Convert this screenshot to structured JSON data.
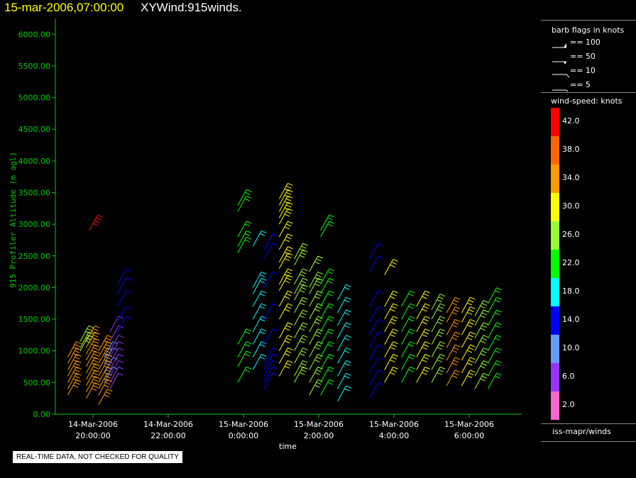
{
  "header": {
    "date_title": "15-mar-2006,07:00:00",
    "plot_title": "XYWind:915winds."
  },
  "chart_data": {
    "type": "scatter",
    "plot_kind": "wind-barb time-height profile",
    "ylabel": "915 Profiler Altitude (m agl)",
    "xlabel": "time",
    "ylim": [
      0,
      6250
    ],
    "yticks": [
      "0.00",
      "500.00",
      "1000.00",
      "1500.00",
      "2000.00",
      "2500.00",
      "3000.00",
      "3500.00",
      "4000.00",
      "4500.00",
      "5000.00",
      "5500.00",
      "6000.00"
    ],
    "xlim_hours": [
      19.1,
      26.5
    ],
    "xticks": [
      {
        "hour": 20,
        "date": "14-Mar-2006",
        "time": "20:00:00"
      },
      {
        "hour": 22,
        "date": "14-Mar-2006",
        "time": "22:00:00"
      },
      {
        "hour": 24,
        "date": "15-Mar-2006",
        "time": "0:00:00"
      },
      {
        "hour": 26,
        "date": "15-Mar-2006",
        "time": "2:00:00"
      },
      {
        "hour": 28,
        "date": "15-Mar-2006",
        "time": "4:00:00"
      },
      {
        "hour": 30,
        "date": "15-Mar-2006",
        "time": "6:00:00"
      }
    ],
    "profiles": [
      {
        "hour": 19.33,
        "heights": [
          300,
          400,
          500,
          600,
          700,
          800,
          900
        ],
        "speed": 33
      },
      {
        "hour": 19.66,
        "heights": [
          1000,
          1050,
          1150
        ],
        "speed": 26
      },
      {
        "hour": 19.82,
        "heights": [
          250,
          350,
          450,
          550,
          650,
          750,
          850,
          950,
          1050,
          1150
        ],
        "speed": 34
      },
      {
        "hour": 19.9,
        "heights": [
          2900
        ],
        "speed": 43
      },
      {
        "hour": 20.15,
        "heights": [
          150,
          300,
          400,
          500,
          600,
          700,
          800,
          900,
          1000
        ],
        "speed": 33
      },
      {
        "hour": 20.3,
        "heights": [
          500,
          650,
          800,
          900
        ],
        "speed": 10
      },
      {
        "hour": 20.45,
        "heights": [
          400,
          500,
          600,
          700,
          800,
          900,
          1000,
          1150,
          1300
        ],
        "speed": 8
      },
      {
        "hour": 20.65,
        "heights": [
          1300,
          1450,
          1700,
          1900,
          2050
        ],
        "speed": 14
      },
      {
        "hour": 23.85,
        "heights": [
          500,
          750,
          900,
          1100,
          2550,
          2650,
          2800,
          3200,
          3300
        ],
        "speed": 22
      },
      {
        "hour": 24.25,
        "heights": [
          700,
          900,
          1100,
          1300,
          1500,
          1700,
          1900,
          2000,
          2650
        ],
        "speed": 20
      },
      {
        "hour": 24.55,
        "heights": [
          400,
          500,
          600,
          700,
          800,
          1100,
          1500,
          2000,
          2450,
          2600
        ],
        "speed": 14
      },
      {
        "hour": 24.95,
        "heights": [
          600,
          800,
          1000,
          1200,
          1500,
          1700,
          1950,
          2050,
          2300,
          2400,
          2600,
          2800,
          3000,
          3100,
          3200,
          3300,
          3400
        ],
        "speed": 30
      },
      {
        "hour": 25.35,
        "heights": [
          500,
          600,
          800,
          1000,
          1200,
          1400,
          1600,
          1800,
          1900,
          2050,
          2350,
          2450
        ],
        "speed": 26
      },
      {
        "hour": 25.75,
        "heights": [
          300,
          500,
          700,
          900,
          1100,
          1300,
          1500,
          1700,
          1900,
          2000,
          2250
        ],
        "speed": 26
      },
      {
        "hour": 26.05,
        "heights": [
          300,
          500,
          700,
          900,
          1100,
          1300,
          1500,
          1700,
          1900,
          2050,
          2800,
          2900
        ],
        "speed": 22
      },
      {
        "hour": 26.5,
        "heights": [
          200,
          400,
          600,
          800,
          1000,
          1200,
          1400,
          1600,
          1800
        ],
        "speed": 18
      },
      {
        "hour": 27.35,
        "heights": [
          250,
          450,
          650,
          850,
          1050,
          1250,
          1450,
          1700,
          2250,
          2450
        ],
        "speed": 14
      },
      {
        "hour": 27.75,
        "heights": [
          500,
          700,
          900,
          1100,
          1300,
          1500,
          1700,
          2200
        ],
        "speed": 30
      },
      {
        "hour": 28.2,
        "heights": [
          500,
          700,
          900,
          1100,
          1300,
          1500,
          1700
        ],
        "speed": 24
      },
      {
        "hour": 28.6,
        "heights": [
          500,
          700,
          900,
          1100,
          1300,
          1500,
          1700
        ],
        "speed": 30
      },
      {
        "hour": 29.0,
        "heights": [
          500,
          700,
          900,
          1100,
          1300,
          1500,
          1650
        ],
        "speed": 28
      },
      {
        "hour": 29.4,
        "heights": [
          450,
          650,
          850,
          1050,
          1250,
          1450,
          1600
        ],
        "speed": 34
      },
      {
        "hour": 29.8,
        "heights": [
          450,
          650,
          850,
          1050,
          1250,
          1450,
          1600
        ],
        "speed": 30
      },
      {
        "hour": 30.15,
        "heights": [
          400,
          600,
          800,
          1000,
          1200,
          1400,
          1550
        ],
        "speed": 26
      },
      {
        "hour": 30.5,
        "heights": [
          400,
          600,
          800,
          1000,
          1200,
          1400,
          1600,
          1750
        ],
        "speed": 24
      }
    ]
  },
  "legend": {
    "barb_title": "barb flags in knots",
    "barb_entries": [
      "== 100",
      "== 50",
      "== 10",
      "== 5"
    ],
    "speed_title": "wind-speed: knots",
    "speed_scale": [
      {
        "label": "42.0",
        "color": "#ff0000"
      },
      {
        "label": "38.0",
        "color": "#ff6600"
      },
      {
        "label": "34.0",
        "color": "#ff9900"
      },
      {
        "label": "30.0",
        "color": "#ffff00"
      },
      {
        "label": "26.0",
        "color": "#99ff33"
      },
      {
        "label": "22.0",
        "color": "#00ff00"
      },
      {
        "label": "18.0",
        "color": "#00ffff"
      },
      {
        "label": "14.0",
        "color": "#0000ff"
      },
      {
        "label": "10.0",
        "color": "#6699ff"
      },
      {
        "label": "6.0",
        "color": "#9933ff"
      },
      {
        "label": "2.0",
        "color": "#ff66cc"
      }
    ],
    "source": "iss-mapr/winds"
  },
  "footer": {
    "disclaimer": "REAL-TIME DATA, NOT CHECKED FOR QUALITY"
  },
  "colors": {
    "axis": "#00cc00",
    "tick_label": "#00cc00",
    "ylabel": "#00cc00",
    "date_title": "#ffff00",
    "plot_title": "#ffffff"
  }
}
